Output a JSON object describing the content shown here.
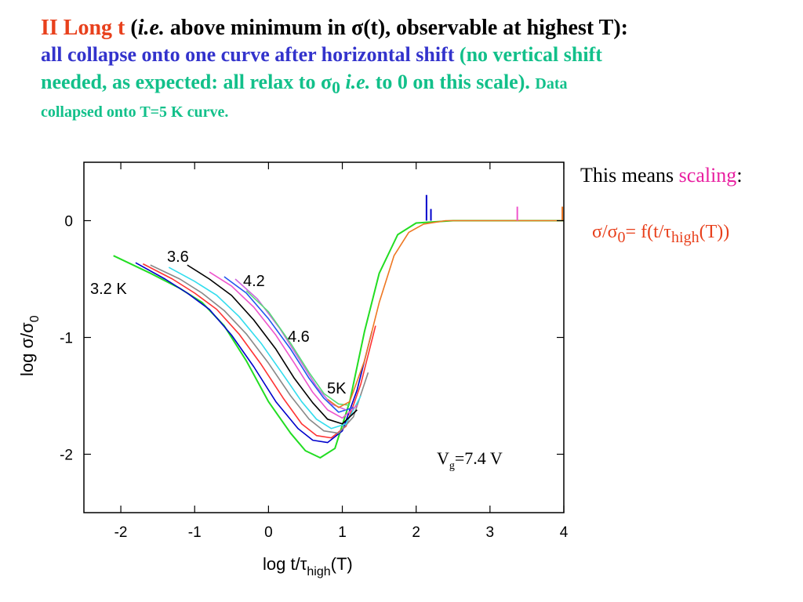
{
  "header": {
    "line1_title": "II Long t",
    "line1_open": "(",
    "line1_ie": "i.e.",
    "line1_rest_a": " above minimum in ",
    "line1_sigma": "σ",
    "line1_rest_b": "(t), observable at highest T):",
    "line2_blue": "all collapse onto one curve after horizontal shift",
    "line2_green": " (no vertical shift",
    "line3_a": "needed, as expected: all relax to ",
    "line3_sigma": "σ",
    "line3_sub": "0",
    "line3_ie": " i.e.",
    "line3_b": " to 0 on this scale).",
    "line3_data": "Data",
    "line4": "collapsed onto T=5 K curve."
  },
  "side": {
    "means_prefix": "This means ",
    "means_word": "scaling",
    "means_colon": ":",
    "formula_sigma": "σ/σ",
    "formula_sub0": "0",
    "formula_mid": "= f(t/τ",
    "formula_sub": "high",
    "formula_end": "(T))"
  },
  "chart_data": {
    "type": "line",
    "xlim": [
      -2.5,
      4
    ],
    "ylim": [
      -2.5,
      0.5
    ],
    "x_ticks": [
      -2,
      -1,
      0,
      1,
      2,
      3,
      4
    ],
    "y_ticks": [
      0,
      -1,
      -2
    ],
    "xlabel_prefix": "log t/",
    "xlabel_tau": "τ",
    "xlabel_sub": "high",
    "xlabel_suffix": "(T)",
    "ylabel_prefix": "log ",
    "ylabel_sigma": "σ/σ",
    "ylabel_sub": "0",
    "annotations": {
      "t32": "3.2 K",
      "t36": "3.6",
      "t42": "4.2",
      "t46": "4.6",
      "t5": "5K",
      "vg_prefix": "V",
      "vg_sub": "g",
      "vg_suffix": "=7.4 V"
    },
    "series": [
      {
        "color": "#22dd22",
        "x": [
          -2.1,
          -1.6,
          -1.2,
          -0.9,
          -0.6,
          -0.3,
          0.0,
          0.3,
          0.5,
          0.7,
          0.9,
          1.1,
          1.3,
          1.5,
          1.75,
          2.0,
          2.5,
          3.0,
          3.5,
          4.0
        ],
        "y": [
          -0.3,
          -0.45,
          -0.58,
          -0.7,
          -0.9,
          -1.2,
          -1.55,
          -1.82,
          -1.97,
          -2.03,
          -1.95,
          -1.55,
          -0.95,
          -0.45,
          -0.12,
          -0.02,
          0.0,
          0.0,
          0.0,
          0.0
        ]
      },
      {
        "color": "#0000cc",
        "x": [
          -1.8,
          -1.4,
          -1.1,
          -0.8,
          -0.5,
          -0.2,
          0.1,
          0.4,
          0.6,
          0.8,
          1.0,
          1.2,
          1.4
        ],
        "y": [
          -0.36,
          -0.5,
          -0.62,
          -0.76,
          -0.98,
          -1.25,
          -1.55,
          -1.78,
          -1.88,
          -1.9,
          -1.8,
          -1.45,
          -0.95
        ]
      },
      {
        "color": "#ff3333",
        "x": [
          -1.7,
          -1.3,
          -1.0,
          -0.7,
          -0.4,
          -0.1,
          0.2,
          0.45,
          0.65,
          0.85,
          1.05,
          1.25,
          1.45
        ],
        "y": [
          -0.37,
          -0.5,
          -0.62,
          -0.76,
          -0.97,
          -1.23,
          -1.52,
          -1.74,
          -1.84,
          -1.86,
          -1.76,
          -1.4,
          -0.9
        ]
      },
      {
        "color": "#888888",
        "x": [
          -1.6,
          -1.2,
          -0.9,
          -0.6,
          -0.3,
          0.0,
          0.3,
          0.55,
          0.75,
          0.95,
          1.15,
          1.35
        ],
        "y": [
          -0.38,
          -0.5,
          -0.62,
          -0.77,
          -0.97,
          -1.22,
          -1.5,
          -1.7,
          -1.8,
          -1.82,
          -1.68,
          -1.3
        ]
      },
      {
        "color": "#33ddee",
        "x": [
          -1.35,
          -1.0,
          -0.7,
          -0.4,
          -0.1,
          0.2,
          0.45,
          0.65,
          0.85,
          1.05,
          1.25
        ],
        "y": [
          -0.4,
          -0.52,
          -0.64,
          -0.82,
          -1.05,
          -1.32,
          -1.55,
          -1.7,
          -1.78,
          -1.74,
          -1.5
        ]
      },
      {
        "color": "#000000",
        "x": [
          -1.1,
          -0.8,
          -0.5,
          -0.2,
          0.1,
          0.35,
          0.6,
          0.8,
          1.0,
          1.2
        ],
        "y": [
          -0.38,
          -0.5,
          -0.64,
          -0.85,
          -1.1,
          -1.35,
          -1.56,
          -1.7,
          -1.74,
          -1.62
        ]
      },
      {
        "color": "#ee55cc",
        "x": [
          -0.8,
          -0.5,
          -0.2,
          0.1,
          0.35,
          0.6,
          0.8,
          1.0,
          1.2
        ],
        "y": [
          -0.44,
          -0.56,
          -0.74,
          -0.98,
          -1.22,
          -1.47,
          -1.62,
          -1.69,
          -1.58
        ]
      },
      {
        "color": "#2255ee",
        "x": [
          -0.6,
          -0.3,
          0.0,
          0.3,
          0.55,
          0.75,
          0.95,
          1.15
        ],
        "y": [
          -0.48,
          -0.62,
          -0.84,
          -1.1,
          -1.35,
          -1.52,
          -1.64,
          -1.6
        ]
      },
      {
        "color": "#cc66dd",
        "x": [
          -0.45,
          -0.15,
          0.15,
          0.4,
          0.65,
          0.85,
          1.05
        ],
        "y": [
          -0.5,
          -0.67,
          -0.92,
          -1.17,
          -1.42,
          -1.57,
          -1.62
        ]
      },
      {
        "color": "#55dd77",
        "x": [
          -0.3,
          0.0,
          0.3,
          0.55,
          0.75,
          0.95,
          1.1
        ],
        "y": [
          -0.6,
          -0.78,
          -1.05,
          -1.3,
          -1.48,
          -1.57,
          -1.58
        ]
      },
      {
        "color": "#ee7722",
        "x": [
          0.8,
          0.95,
          1.1,
          1.3,
          1.5,
          1.7,
          1.9,
          2.1,
          2.4,
          3.0,
          3.5,
          4.0
        ],
        "y": [
          -1.53,
          -1.6,
          -1.55,
          -1.2,
          -0.7,
          -0.3,
          -0.1,
          -0.03,
          0.0,
          0.0,
          0.0,
          0.0
        ]
      }
    ],
    "spikes": [
      {
        "color": "#0000cc",
        "x": 2.14,
        "y_top": 0.22
      },
      {
        "color": "#0000cc",
        "x": 2.2,
        "y_top": 0.1
      },
      {
        "color": "#ee55cc",
        "x": 3.37,
        "y_top": 0.12
      },
      {
        "color": "#ee7722",
        "x": 3.98,
        "y_top": 0.12
      }
    ]
  }
}
